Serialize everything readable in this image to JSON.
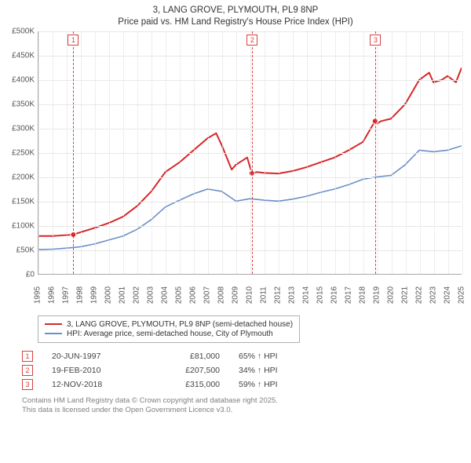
{
  "title_line1": "3, LANG GROVE, PLYMOUTH, PL9 8NP",
  "title_line2": "Price paid vs. HM Land Registry's House Price Index (HPI)",
  "chart": {
    "type": "line",
    "background_color": "#ffffff",
    "grid_color": "#e8e8e8",
    "axis_color": "#aaaaaa",
    "ylim": [
      0,
      500000
    ],
    "ytick_step": 50000,
    "yticklabels": [
      "£0",
      "£50K",
      "£100K",
      "£150K",
      "£200K",
      "£250K",
      "£300K",
      "£350K",
      "£400K",
      "£450K",
      "£500K"
    ],
    "xlim": [
      1995,
      2025
    ],
    "xticks": [
      1995,
      1996,
      1997,
      1998,
      1999,
      2000,
      2001,
      2002,
      2003,
      2004,
      2005,
      2006,
      2007,
      2008,
      2009,
      2010,
      2011,
      2012,
      2013,
      2014,
      2015,
      2016,
      2017,
      2018,
      2019,
      2020,
      2021,
      2022,
      2023,
      2024,
      2025
    ],
    "label_fontsize": 10,
    "title_fontsize": 11.5,
    "series": [
      {
        "name": "3, LANG GROVE, PLYMOUTH, PL9 8NP (semi-detached house)",
        "color": "#d62728",
        "line_width": 2,
        "points": [
          [
            1995,
            78000
          ],
          [
            1996,
            78000
          ],
          [
            1997,
            80000
          ],
          [
            1997.47,
            81000
          ],
          [
            1998,
            86000
          ],
          [
            1999,
            95000
          ],
          [
            2000,
            105000
          ],
          [
            2001,
            118000
          ],
          [
            2002,
            140000
          ],
          [
            2003,
            170000
          ],
          [
            2004,
            210000
          ],
          [
            2005,
            230000
          ],
          [
            2006,
            255000
          ],
          [
            2007,
            280000
          ],
          [
            2007.6,
            290000
          ],
          [
            2008,
            265000
          ],
          [
            2008.7,
            215000
          ],
          [
            2009,
            225000
          ],
          [
            2009.8,
            240000
          ],
          [
            2010.13,
            207500
          ],
          [
            2010.5,
            210000
          ],
          [
            2011,
            208000
          ],
          [
            2012,
            207000
          ],
          [
            2013,
            212000
          ],
          [
            2014,
            220000
          ],
          [
            2015,
            230000
          ],
          [
            2016,
            240000
          ],
          [
            2017,
            255000
          ],
          [
            2018,
            272000
          ],
          [
            2018.86,
            315000
          ],
          [
            2019,
            310000
          ],
          [
            2019.3,
            315000
          ],
          [
            2020,
            320000
          ],
          [
            2021,
            350000
          ],
          [
            2022,
            400000
          ],
          [
            2022.7,
            415000
          ],
          [
            2023,
            395000
          ],
          [
            2023.6,
            400000
          ],
          [
            2024,
            408000
          ],
          [
            2024.6,
            395000
          ],
          [
            2025,
            425000
          ]
        ]
      },
      {
        "name": "HPI: Average price, semi-detached house, City of Plymouth",
        "color": "#6b8fc9",
        "line_width": 1.6,
        "points": [
          [
            1995,
            50000
          ],
          [
            1996,
            51000
          ],
          [
            1997,
            53000
          ],
          [
            1998,
            56000
          ],
          [
            1999,
            62000
          ],
          [
            2000,
            70000
          ],
          [
            2001,
            78000
          ],
          [
            2002,
            92000
          ],
          [
            2003,
            112000
          ],
          [
            2004,
            138000
          ],
          [
            2005,
            152000
          ],
          [
            2006,
            165000
          ],
          [
            2007,
            175000
          ],
          [
            2008,
            170000
          ],
          [
            2009,
            150000
          ],
          [
            2010,
            155000
          ],
          [
            2011,
            152000
          ],
          [
            2012,
            150000
          ],
          [
            2013,
            154000
          ],
          [
            2014,
            160000
          ],
          [
            2015,
            168000
          ],
          [
            2016,
            175000
          ],
          [
            2017,
            184000
          ],
          [
            2018,
            195000
          ],
          [
            2019,
            200000
          ],
          [
            2020,
            203000
          ],
          [
            2021,
            225000
          ],
          [
            2022,
            255000
          ],
          [
            2023,
            252000
          ],
          [
            2024,
            255000
          ],
          [
            2025,
            264000
          ]
        ]
      }
    ],
    "sale_markers": [
      {
        "n": "1",
        "year": 1997.47
      },
      {
        "n": "2",
        "year": 2010.13
      },
      {
        "n": "3",
        "year": 2018.86
      }
    ],
    "sale_line_color": "#d94040"
  },
  "legend": {
    "items": [
      {
        "label": "3, LANG GROVE, PLYMOUTH, PL9 8NP (semi-detached house)",
        "color": "#d62728"
      },
      {
        "label": "HPI: Average price, semi-detached house, City of Plymouth",
        "color": "#6b8fc9"
      }
    ]
  },
  "sales": [
    {
      "n": "1",
      "date": "20-JUN-1997",
      "price": "£81,000",
      "rel": "65% ↑ HPI"
    },
    {
      "n": "2",
      "date": "19-FEB-2010",
      "price": "£207,500",
      "rel": "34% ↑ HPI"
    },
    {
      "n": "3",
      "date": "12-NOV-2018",
      "price": "£315,000",
      "rel": "59% ↑ HPI"
    }
  ],
  "attribution_line1": "Contains HM Land Registry data © Crown copyright and database right 2025.",
  "attribution_line2": "This data is licensed under the Open Government Licence v3.0."
}
